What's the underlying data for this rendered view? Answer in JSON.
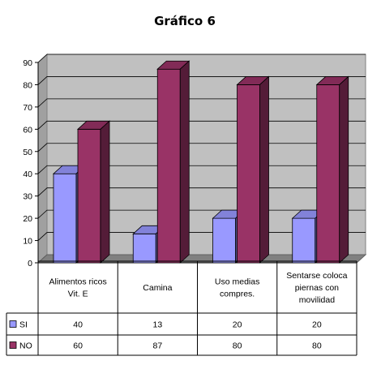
{
  "chart_data": {
    "type": "bar",
    "title": "Gráfico 6",
    "categories": [
      [
        "Alimentos ricos",
        "Vit. E"
      ],
      [
        "Camina"
      ],
      [
        "Uso medias",
        "compres."
      ],
      [
        "Sentarse coloca",
        "piernas con",
        "movilidad"
      ]
    ],
    "series": [
      {
        "name": "SI",
        "values": [
          40,
          13,
          20,
          20
        ],
        "color": "#9999ff"
      },
      {
        "name": "NO",
        "values": [
          60,
          87,
          80,
          80
        ],
        "color": "#993366"
      }
    ],
    "ylim": [
      0,
      90
    ],
    "yticks": [
      0,
      10,
      20,
      30,
      40,
      50,
      60,
      70,
      80,
      90
    ],
    "grid": true,
    "wall_color": "#c0c0c0",
    "legend_placement": "data-table"
  }
}
